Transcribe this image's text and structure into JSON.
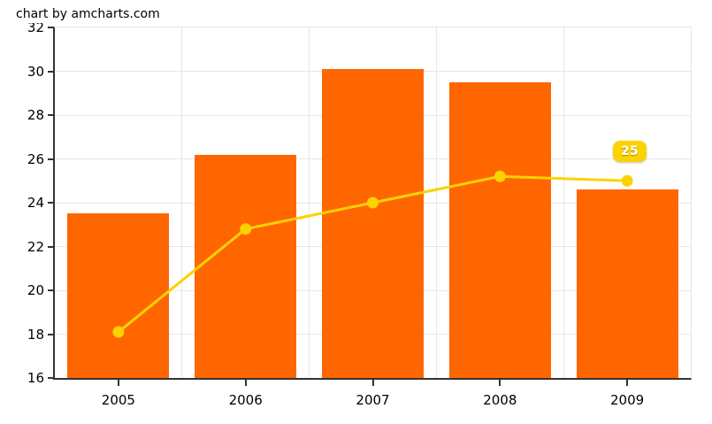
{
  "credit": {
    "label": "chart by amcharts.com"
  },
  "colors": {
    "bar": "#FF6600",
    "line": "#FCD202",
    "bullet": "#FCD202",
    "balloon_bg": "#FCD202",
    "balloon_text": "#FFFFFF",
    "grid": "#E7E7E7",
    "axis": "#333333",
    "label_text": "#000000",
    "background": "#FFFFFF"
  },
  "chart_data": {
    "type": "bar",
    "title": "",
    "xlabel": "",
    "ylabel": "",
    "categories": [
      "2005",
      "2006",
      "2007",
      "2008",
      "2009"
    ],
    "series": [
      {
        "name": "columns",
        "type": "bar",
        "color": "#FF6600",
        "values": [
          23.5,
          26.2,
          30.1,
          29.5,
          24.6
        ]
      },
      {
        "name": "line",
        "type": "line",
        "color": "#FCD202",
        "values": [
          18.1,
          22.8,
          24.0,
          25.2,
          25.0
        ]
      }
    ],
    "ylim": [
      16,
      32
    ],
    "yticks": [
      16,
      18,
      20,
      22,
      24,
      26,
      28,
      30,
      32
    ],
    "grid": true,
    "legend": false,
    "annotations": [
      {
        "text": "25",
        "series": "line",
        "category": "2009"
      }
    ]
  }
}
